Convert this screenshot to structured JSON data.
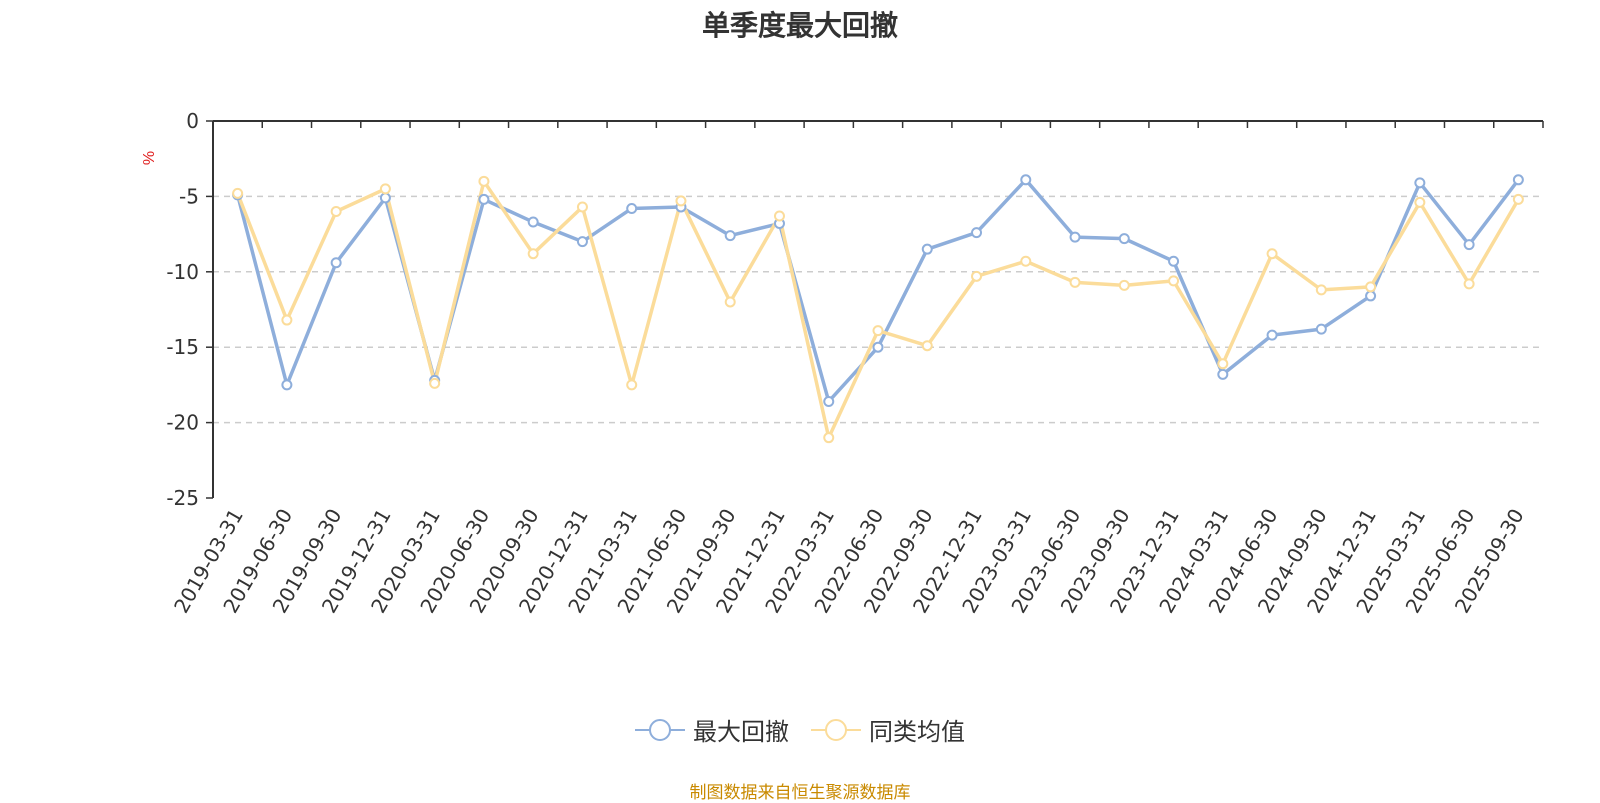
{
  "chart_data": {
    "type": "line",
    "title": "单季度最大回撤",
    "ylabel": "%",
    "ylim": [
      -25,
      0
    ],
    "yticks": [
      "0",
      "-5",
      "-10",
      "-15",
      "-20",
      "-25"
    ],
    "grid": true,
    "legend_position": "bottom",
    "categories": [
      "2019-03-31",
      "2019-06-30",
      "2019-09-30",
      "2019-12-31",
      "2020-03-31",
      "2020-06-30",
      "2020-09-30",
      "2020-12-31",
      "2021-03-31",
      "2021-06-30",
      "2021-09-30",
      "2021-12-31",
      "2022-03-31",
      "2022-06-30",
      "2022-09-30",
      "2022-12-31",
      "2023-03-31",
      "2023-06-30",
      "2023-09-30",
      "2023-12-31",
      "2024-03-31",
      "2024-06-30",
      "2024-09-30",
      "2024-12-31",
      "2025-03-31",
      "2025-06-30",
      "2025-09-30"
    ],
    "series": [
      {
        "name": "最大回撤",
        "color": "#8eaedb",
        "values": [
          -4.9,
          -17.5,
          -9.4,
          -5.1,
          -17.2,
          -5.2,
          -6.7,
          -8.0,
          -5.8,
          -5.7,
          -7.6,
          -6.8,
          -18.6,
          -15.0,
          -8.5,
          -7.4,
          -3.9,
          -7.7,
          -7.8,
          -9.3,
          -16.8,
          -14.2,
          -13.8,
          -11.6,
          -4.1,
          -8.2,
          -3.9
        ]
      },
      {
        "name": "同类均值",
        "color": "#fbdc9a",
        "values": [
          -4.8,
          -13.2,
          -6.0,
          -4.5,
          -17.4,
          -4.0,
          -8.8,
          -5.7,
          -17.5,
          -5.3,
          -12.0,
          -6.3,
          -21.0,
          -13.9,
          -14.9,
          -10.3,
          -9.3,
          -10.7,
          -10.9,
          -10.6,
          -16.1,
          -8.8,
          -11.2,
          -11.0,
          -5.4,
          -10.8,
          -5.2
        ]
      }
    ]
  },
  "source_note": "制图数据来自恒生聚源数据库",
  "colors": {
    "axis": "#333333",
    "grid": "#cccccc",
    "ylabel": "#e02020",
    "source": "#c98a00"
  }
}
